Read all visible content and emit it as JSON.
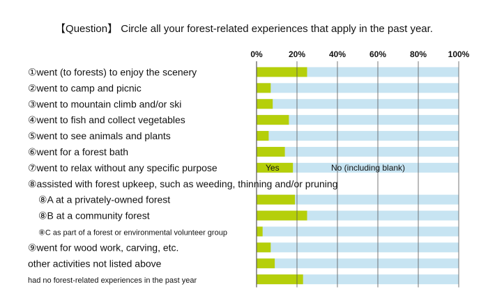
{
  "title": "【Question】 Circle all your forest-related experiences that apply in the past year.",
  "chart_data": {
    "type": "bar",
    "orientation": "horizontal",
    "stacked": true,
    "percent_stacked": true,
    "title": "【Question】 Circle all your forest-related experiences that apply in the past year.",
    "xlim": [
      0,
      100
    ],
    "x_ticks": [
      "0%",
      "20%",
      "40%",
      "60%",
      "80%",
      "100%"
    ],
    "grid": true,
    "colors": {
      "yes": "#b5cf0a",
      "no": "#c7e4f2"
    },
    "series_labels": {
      "yes": "Yes",
      "no": "No (including blank)"
    },
    "rows": [
      {
        "label": "①went (to forests) to enjoy the scenery",
        "yes": 25,
        "bar": true
      },
      {
        "label": "②went to camp and picnic",
        "yes": 7,
        "bar": true
      },
      {
        "label": "③went to mountain climb and/or ski",
        "yes": 8,
        "bar": true
      },
      {
        "label": "④went to fish and collect vegetables",
        "yes": 16,
        "bar": true
      },
      {
        "label": "⑤went to see animals and plants",
        "yes": 6,
        "bar": true
      },
      {
        "label": "⑥went for a forest bath",
        "yes": 14,
        "bar": true
      },
      {
        "label": "⑦went to relax without any specific purpose",
        "yes": 18,
        "bar": true,
        "show_series_labels": true
      },
      {
        "label": "⑧assisted with forest upkeep, such as weeding, thinning and/or pruning",
        "bar": false
      },
      {
        "label": "⑧A at a privately-owned forest",
        "yes": 19,
        "bar": true,
        "indent": true
      },
      {
        "label": "⑧B at a community forest",
        "yes": 25,
        "bar": true,
        "indent": true
      },
      {
        "label": "⑧C as part of a forest or environmental volunteer group",
        "yes": 3,
        "bar": true,
        "indent": true,
        "small": true
      },
      {
        "label": "⑨went for wood work, carving, etc.",
        "yes": 7,
        "bar": true
      },
      {
        "label": "other activities not listed above",
        "yes": 9,
        "bar": true
      },
      {
        "label": "had no forest-related experiences in the past year",
        "yes": 23,
        "bar": true,
        "small": true
      }
    ]
  }
}
